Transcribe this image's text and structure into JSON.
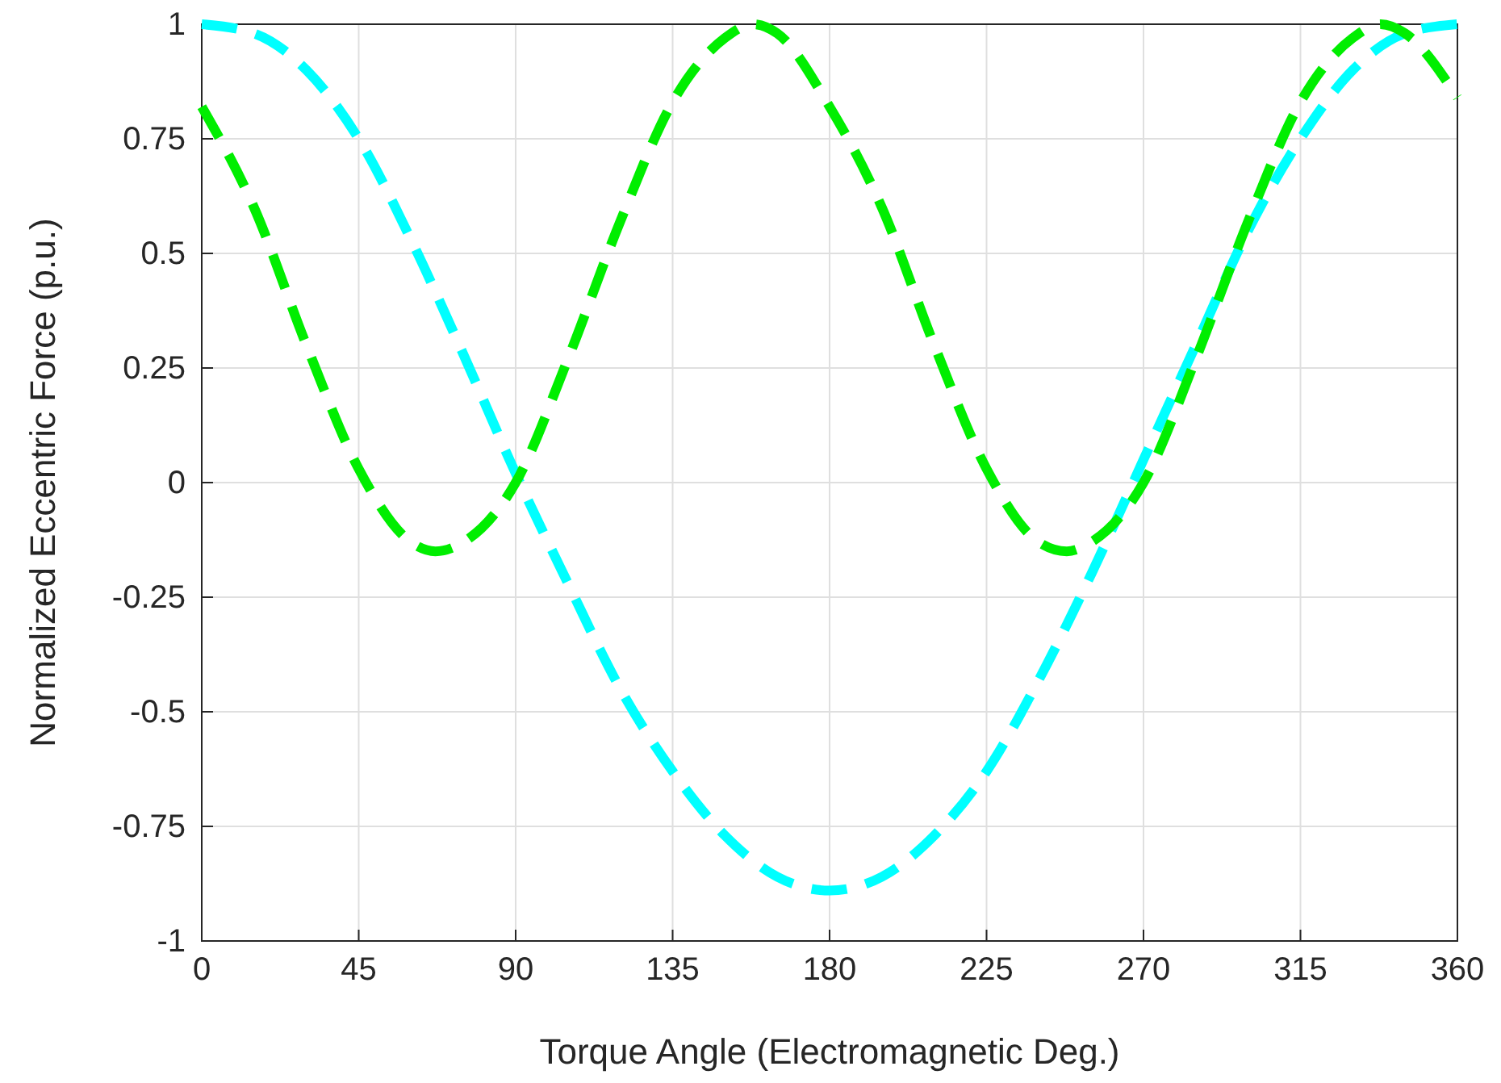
{
  "chart_data": {
    "type": "line",
    "xlabel": "Torque Angle (Electromagnetic Deg.)",
    "ylabel": "Normalized Eccentric Force (p.u.)",
    "xlim": [
      0,
      360
    ],
    "xticks": [
      0,
      45,
      90,
      135,
      180,
      225,
      270,
      315,
      360
    ],
    "ylim": [
      -1,
      1
    ],
    "yticks": [
      -1,
      -0.75,
      -0.5,
      -0.25,
      0,
      0.25,
      0.5,
      0.75,
      1
    ],
    "grid": true,
    "line_style": "dashed",
    "series": [
      {
        "color": "#00ffff",
        "x": [
          0,
          15,
          30,
          45,
          60,
          75,
          90,
          105,
          120,
          135,
          150,
          165,
          180,
          195,
          210,
          225,
          240,
          255,
          270,
          285,
          300,
          315,
          330,
          345,
          360
        ],
        "values": [
          1,
          0.98,
          0.9,
          0.75,
          0.53,
          0.28,
          0.02,
          -0.22,
          -0.45,
          -0.63,
          -0.77,
          -0.86,
          -0.89,
          -0.86,
          -0.77,
          -0.63,
          -0.43,
          -0.2,
          0.05,
          0.3,
          0.55,
          0.75,
          0.9,
          0.98,
          1
        ]
      },
      {
        "color": "#00ee00",
        "x": [
          0,
          15,
          30,
          45,
          60,
          67,
          75,
          90,
          105,
          120,
          135,
          150,
          158,
          165,
          180,
          195,
          210,
          225,
          240,
          248,
          255,
          270,
          285,
          300,
          315,
          330,
          338,
          345,
          360
        ],
        "values": [
          0.82,
          0.6,
          0.3,
          0.03,
          -0.13,
          -0.15,
          -0.13,
          0,
          0.27,
          0.57,
          0.83,
          0.97,
          1,
          0.98,
          0.82,
          0.6,
          0.3,
          0.03,
          -0.13,
          -0.15,
          -0.13,
          0,
          0.27,
          0.57,
          0.83,
          0.97,
          1,
          0.98,
          0.84
        ]
      }
    ]
  }
}
